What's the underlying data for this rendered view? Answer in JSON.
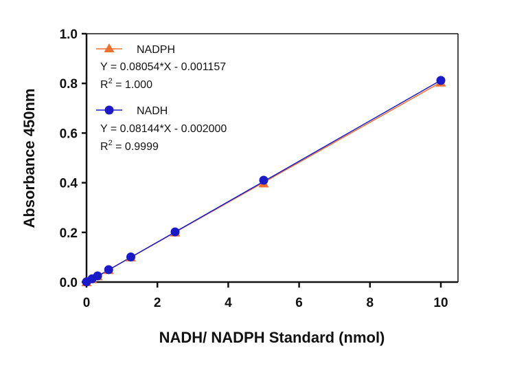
{
  "chart_data": {
    "type": "scatter",
    "xlabel": "NADH/ NADPH Standard (nmol)",
    "ylabel": "Absorbance 450nm",
    "xlim": [
      0,
      10.5
    ],
    "ylim": [
      0,
      1.0
    ],
    "x_ticks": [
      "0",
      "2",
      "4",
      "6",
      "8",
      "10"
    ],
    "y_ticks": [
      "0.0",
      "0.2",
      "0.4",
      "0.6",
      "0.8",
      "1.0"
    ],
    "grid": false,
    "legend_position": "top-left",
    "series": [
      {
        "name": "NADPH",
        "marker": "triangle",
        "color": "#F07030",
        "x": [
          0,
          0.156,
          0.3125,
          0.625,
          1.25,
          2.5,
          5,
          10
        ],
        "y": [
          0.0,
          0.012,
          0.024,
          0.049,
          0.1,
          0.2,
          0.398,
          0.804
        ],
        "equation": "Y = 0.08054*X - 0.001157",
        "r2_prefix": "R",
        "r2_sup": "2",
        "r2_value": " = 1.000",
        "slope": 0.08054,
        "intercept": -0.001157
      },
      {
        "name": "NADH",
        "marker": "circle",
        "color": "#1A1AC8",
        "x": [
          0,
          0.156,
          0.3125,
          0.625,
          1.25,
          2.5,
          5,
          10
        ],
        "y": [
          0.001,
          0.013,
          0.025,
          0.05,
          0.101,
          0.202,
          0.41,
          0.812
        ],
        "equation": "Y = 0.08144*X - 0.002000",
        "r2_prefix": "R",
        "r2_sup": "2",
        "r2_value": " = 0.9999",
        "slope": 0.08144,
        "intercept": -0.002
      }
    ]
  }
}
